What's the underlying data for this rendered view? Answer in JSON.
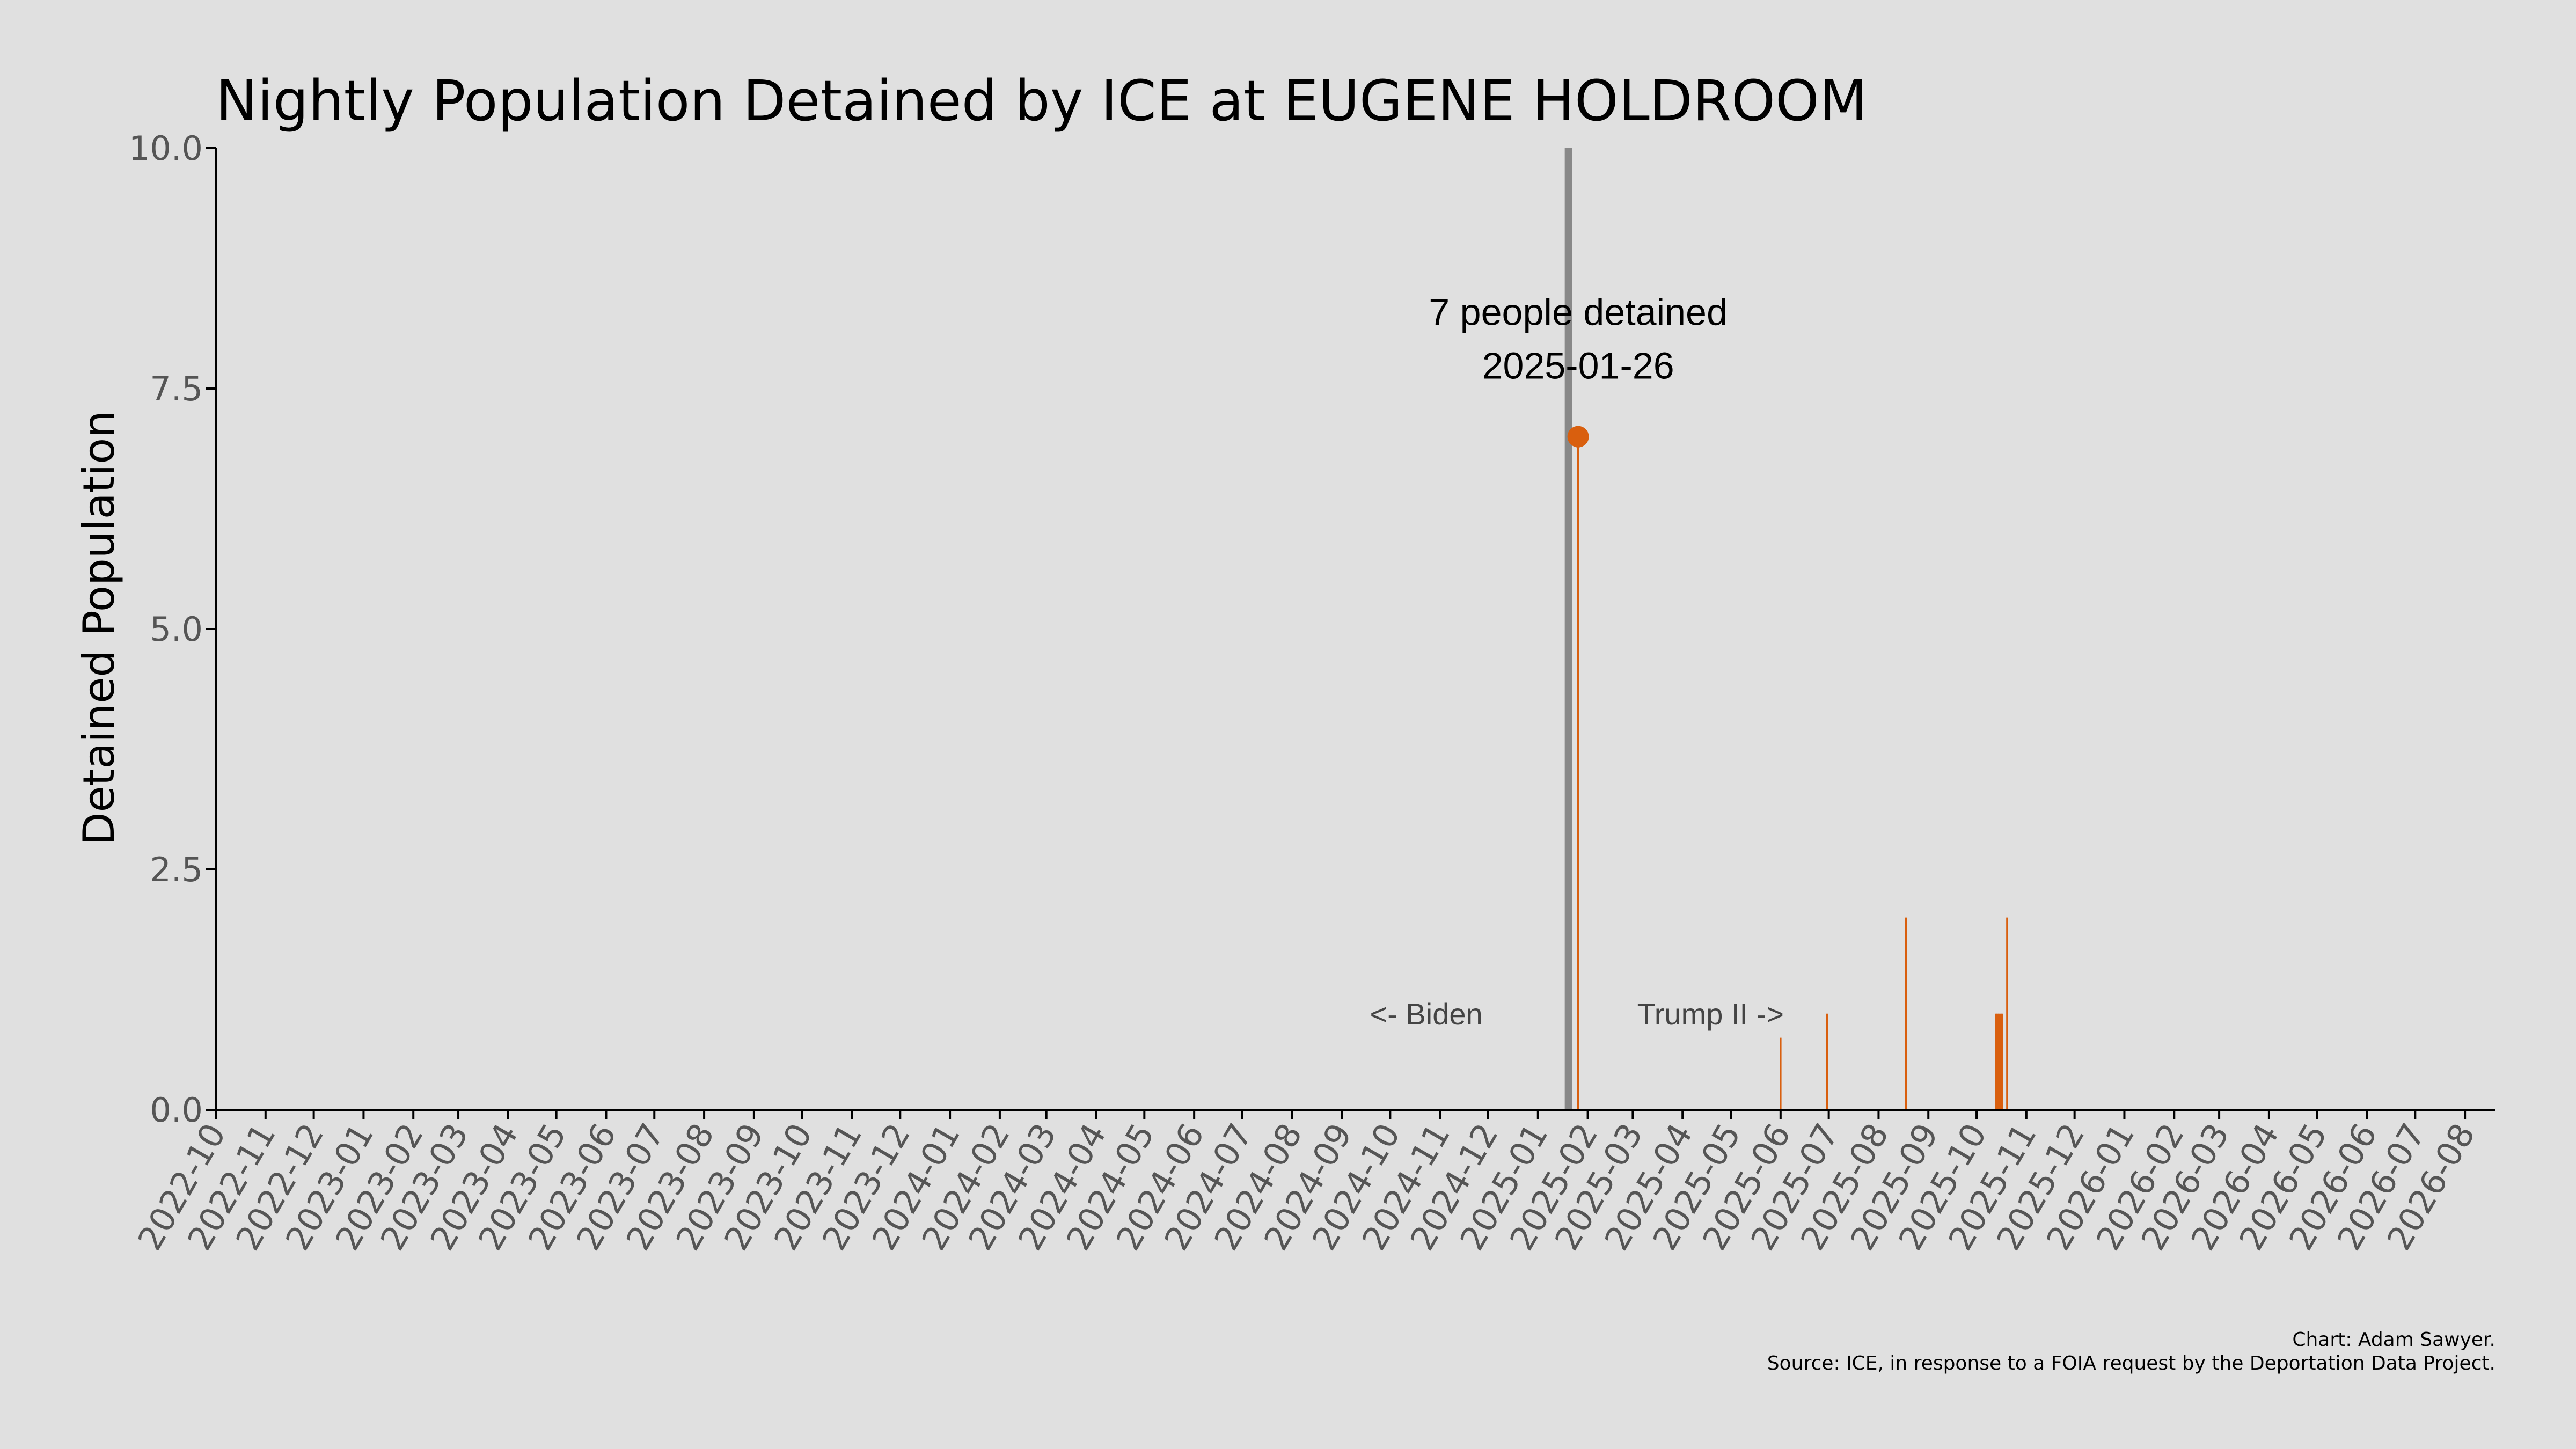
{
  "chart_data": {
    "type": "bar",
    "title": "Nightly Population Detained by ICE at EUGENE HOLDROOM",
    "xlabel": "",
    "ylabel": "Detained Population",
    "ylim": [
      0,
      10
    ],
    "xlim": [
      "2022-10-01",
      "2026-08-20"
    ],
    "yticks": [
      "0.0",
      "2.5",
      "5.0",
      "7.5",
      "10.0"
    ],
    "xticks": [
      "2022-10",
      "2022-11",
      "2022-12",
      "2023-01",
      "2023-02",
      "2023-03",
      "2023-04",
      "2023-05",
      "2023-06",
      "2023-07",
      "2023-08",
      "2023-09",
      "2023-10",
      "2023-11",
      "2023-12",
      "2024-01",
      "2024-02",
      "2024-03",
      "2024-04",
      "2024-05",
      "2024-06",
      "2024-07",
      "2024-08",
      "2024-09",
      "2024-10",
      "2024-11",
      "2024-12",
      "2025-01",
      "2025-02",
      "2025-03",
      "2025-04",
      "2025-05",
      "2025-06",
      "2025-07",
      "2025-08",
      "2025-09",
      "2025-10",
      "2025-11",
      "2025-12",
      "2026-01",
      "2026-02",
      "2026-03",
      "2026-04",
      "2026-05",
      "2026-06",
      "2026-07",
      "2026-08"
    ],
    "grid": false,
    "series": [
      {
        "points": [
          {
            "x": "2025-01-26",
            "y": 7
          },
          {
            "x": "2025-06-01",
            "y": 0.75
          },
          {
            "x": "2025-06-30",
            "y": 1
          },
          {
            "x": "2025-08-18",
            "y": 2
          },
          {
            "x": "2025-10-13",
            "y": 1
          },
          {
            "x": "2025-10-14",
            "y": 1
          },
          {
            "x": "2025-10-15",
            "y": 1
          },
          {
            "x": "2025-10-16",
            "y": 1
          },
          {
            "x": "2025-10-17",
            "y": 1
          },
          {
            "x": "2025-10-20",
            "y": 2
          }
        ]
      }
    ],
    "divider": {
      "x": "2025-01-20"
    },
    "annotation": {
      "line1": "7 people detained",
      "line2": "2025-01-26",
      "x": "2025-01-26",
      "y": 7
    },
    "era_labels": {
      "left": "<- Biden",
      "right": "Trump II ->"
    },
    "colors": {
      "bar": "#d95f0e",
      "divider": "#888888",
      "axis": "#000000",
      "background": "#e0e0e0"
    }
  },
  "credits": {
    "line1": "Chart: Adam Sawyer.",
    "line2": "Source: ICE, in response to a FOIA request by the Deportation Data Project."
  }
}
